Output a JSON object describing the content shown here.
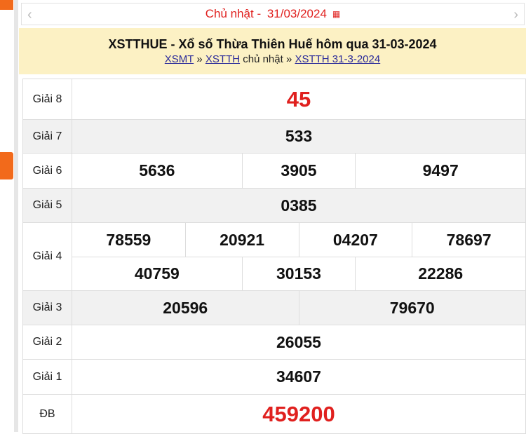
{
  "date_bar": {
    "label": "Chủ nhật - ",
    "date": "31/03/2024",
    "calendar_icon": "calendar-icon",
    "prev_icon": "chevron-left-icon",
    "next_icon": "chevron-right-icon"
  },
  "header": {
    "title": "XSTTHUE - Xổ số Thừa Thiên Huế hôm qua 31-03-2024",
    "breadcrumb": {
      "link1": "XSMT",
      "sep1": " » ",
      "link2": "XSTTH",
      "text": " chủ nhật",
      "sep2": " » ",
      "link3": "XSTTH 31-3-2024"
    }
  },
  "results": {
    "g8": {
      "label": "Giải 8",
      "values": [
        "45"
      ]
    },
    "g7": {
      "label": "Giải 7",
      "values": [
        "533"
      ]
    },
    "g6": {
      "label": "Giải 6",
      "values": [
        "5636",
        "3905",
        "9497"
      ]
    },
    "g5": {
      "label": "Giải 5",
      "values": [
        "0385"
      ]
    },
    "g4": {
      "label": "Giải 4",
      "values": [
        "78559",
        "20921",
        "04207",
        "78697",
        "40759",
        "30153",
        "22286"
      ]
    },
    "g3": {
      "label": "Giải 3",
      "values": [
        "20596",
        "79670"
      ]
    },
    "g2": {
      "label": "Giải 2",
      "values": [
        "26055"
      ]
    },
    "g1": {
      "label": "Giải 1",
      "values": [
        "34607"
      ]
    },
    "db": {
      "label": "ĐB",
      "values": [
        "459200"
      ]
    }
  },
  "colors": {
    "accent": "#e0201e",
    "header_bg": "#fcf1c4",
    "sidebar_orange": "#f26a1b"
  }
}
